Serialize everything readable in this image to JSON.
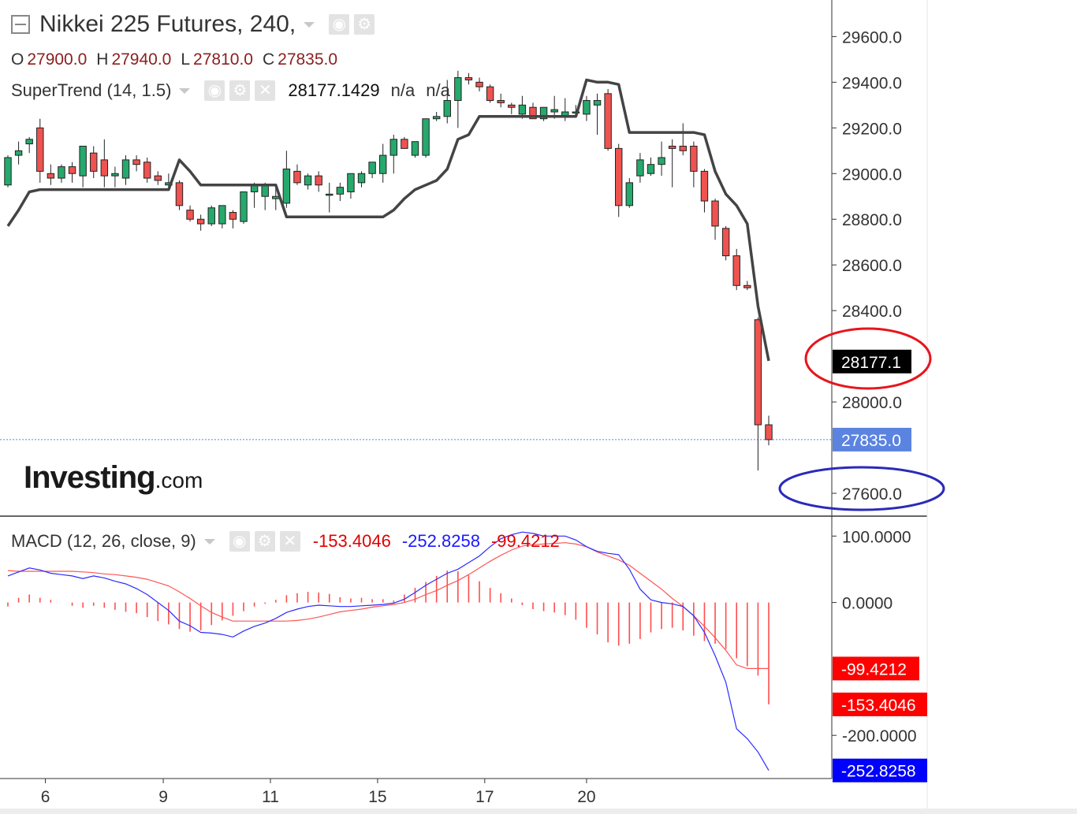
{
  "header": {
    "title": "Nikkei 225 Futures, 240,",
    "ohlc": [
      {
        "label": "O",
        "value": "27900.0"
      },
      {
        "label": "H",
        "value": "27940.0"
      },
      {
        "label": "L",
        "value": "27810.0"
      },
      {
        "label": "C",
        "value": "27835.0"
      }
    ]
  },
  "indicators": {
    "supertrend": {
      "label": "SuperTrend (14, 1.5)",
      "value": "28177.1429",
      "na1": "n/a",
      "na2": "n/a"
    },
    "macd": {
      "label": "MACD (12, 26, close, 9)",
      "hist": "-153.4046",
      "macd": "-252.8258",
      "signal": "-99.4212"
    }
  },
  "logo": {
    "main": "Investing",
    "suffix": ".com"
  },
  "colors": {
    "up": "#26a96c",
    "down": "#ef5350",
    "supertrend": "#444444",
    "macd_line": "#2b2bff",
    "signal_line": "#ff5555",
    "histogram": "#ff4d4d",
    "price_tag": "#5b83e0",
    "annotation_red": "#e8141c",
    "annotation_blue": "#2a2ab8"
  },
  "chart_data": [
    {
      "type": "candlestick",
      "title": "Nikkei 225 Futures, 240,",
      "x_ticks": [
        {
          "label": "6",
          "index": 3.5
        },
        {
          "label": "9",
          "index": 14.5
        },
        {
          "label": "11",
          "index": 24.5
        },
        {
          "label": "15",
          "index": 34.5
        },
        {
          "label": "17",
          "index": 44.5
        },
        {
          "label": "20",
          "index": 54
        }
      ],
      "y_ticks": [
        "29600.0",
        "29400.0",
        "29200.0",
        "29000.0",
        "28800.0",
        "28600.0",
        "28400.0",
        "28000.0",
        "27600.0"
      ],
      "y_tick_values": [
        29600,
        29400,
        29200,
        29000,
        28800,
        28600,
        28400,
        28000,
        27600
      ],
      "ylim": [
        27500,
        29760
      ],
      "candles": [
        [
          28950,
          29080,
          28940,
          29070
        ],
        [
          29080,
          29140,
          29040,
          29100
        ],
        [
          29130,
          29160,
          29090,
          29150
        ],
        [
          29200,
          29240,
          28960,
          29010
        ],
        [
          29000,
          29040,
          28950,
          28980
        ],
        [
          28980,
          29040,
          28960,
          29030
        ],
        [
          29030,
          29050,
          28960,
          29000
        ],
        [
          28990,
          29120,
          28940,
          29120
        ],
        [
          29090,
          29120,
          28980,
          29010
        ],
        [
          29060,
          29150,
          28940,
          28990
        ],
        [
          28990,
          29030,
          28940,
          29000
        ],
        [
          28980,
          29080,
          28950,
          29060
        ],
        [
          29060,
          29080,
          29010,
          29040
        ],
        [
          29050,
          29070,
          28960,
          28980
        ],
        [
          28990,
          29010,
          28950,
          28970
        ],
        [
          28950,
          29000,
          28930,
          28960
        ],
        [
          28960,
          28970,
          28840,
          28860
        ],
        [
          28840,
          28860,
          28790,
          28800
        ],
        [
          28800,
          28820,
          28750,
          28780
        ],
        [
          28780,
          28860,
          28770,
          28850
        ],
        [
          28780,
          28860,
          28760,
          28860
        ],
        [
          28830,
          28840,
          28760,
          28800
        ],
        [
          28790,
          28920,
          28780,
          28920
        ],
        [
          28920,
          28960,
          28850,
          28950
        ],
        [
          28900,
          28960,
          28840,
          28950
        ],
        [
          28890,
          28950,
          28840,
          28900
        ],
        [
          28870,
          29100,
          28850,
          29020
        ],
        [
          29010,
          29040,
          28950,
          28960
        ],
        [
          28950,
          29000,
          28930,
          28990
        ],
        [
          28990,
          29010,
          28920,
          28950
        ],
        [
          28910,
          28960,
          28830,
          28910
        ],
        [
          28910,
          28960,
          28880,
          28940
        ],
        [
          28920,
          29000,
          28890,
          29000
        ],
        [
          28960,
          29010,
          28940,
          29000
        ],
        [
          29000,
          29050,
          28980,
          29050
        ],
        [
          29000,
          29130,
          28960,
          29080
        ],
        [
          29080,
          29170,
          29000,
          29150
        ],
        [
          29150,
          29160,
          29110,
          29110
        ],
        [
          29080,
          29140,
          29070,
          29140
        ],
        [
          29080,
          29240,
          29070,
          29240
        ],
        [
          29240,
          29270,
          29230,
          29250
        ],
        [
          29250,
          29410,
          29220,
          29320
        ],
        [
          29320,
          29450,
          29200,
          29420
        ],
        [
          29420,
          29440,
          29390,
          29410
        ],
        [
          29400,
          29420,
          29360,
          29380
        ],
        [
          29380,
          29390,
          29310,
          29320
        ],
        [
          29320,
          29350,
          29290,
          29310
        ],
        [
          29300,
          29310,
          29260,
          29290
        ],
        [
          29260,
          29340,
          29240,
          29300
        ],
        [
          29290,
          29310,
          29240,
          29240
        ],
        [
          29240,
          29290,
          29230,
          29290
        ],
        [
          29270,
          29340,
          29240,
          29280
        ],
        [
          29250,
          29330,
          29230,
          29270
        ],
        [
          29270,
          29300,
          29250,
          29270
        ],
        [
          29260,
          29340,
          29230,
          29320
        ],
        [
          29300,
          29350,
          29170,
          29320
        ],
        [
          29350,
          29370,
          29100,
          29110
        ],
        [
          29110,
          29130,
          28810,
          28860
        ],
        [
          28860,
          28980,
          28850,
          28960
        ],
        [
          28990,
          29090,
          28960,
          29060
        ],
        [
          29000,
          29070,
          28990,
          29040
        ],
        [
          29040,
          29140,
          28990,
          29070
        ],
        [
          29120,
          29150,
          28940,
          29110
        ],
        [
          29120,
          29220,
          29080,
          29100
        ],
        [
          29120,
          29140,
          28940,
          29010
        ],
        [
          29010,
          29020,
          28830,
          28880
        ],
        [
          28880,
          28890,
          28710,
          28770
        ],
        [
          28760,
          28770,
          28620,
          28640
        ],
        [
          28640,
          28670,
          28490,
          28510
        ],
        [
          28510,
          28530,
          28490,
          28500
        ],
        [
          28360,
          28370,
          27700,
          27900
        ],
        [
          27900,
          27940,
          27810,
          27835
        ]
      ],
      "supertrend": [
        28770,
        28840,
        28920,
        28930,
        28930,
        28930,
        28930,
        28930,
        28930,
        28930,
        28930,
        28930,
        28930,
        28930,
        28930,
        28930,
        29060,
        29010,
        28950,
        28950,
        28950,
        28950,
        28950,
        28950,
        28950,
        28950,
        28810,
        28810,
        28810,
        28810,
        28810,
        28810,
        28810,
        28810,
        28810,
        28810,
        28840,
        28890,
        28930,
        28950,
        28970,
        29020,
        29150,
        29170,
        29250,
        29250,
        29250,
        29250,
        29250,
        29250,
        29250,
        29250,
        29250,
        29250,
        29410,
        29400,
        29400,
        29390,
        29180,
        29180,
        29180,
        29180,
        29180,
        29180,
        29180,
        29170,
        29010,
        28910,
        28860,
        28780,
        28420,
        28180
      ],
      "price_labels": {
        "supertrend_tag": "28177.1",
        "last_price": "27835.0",
        "last_value": 27835
      }
    },
    {
      "type": "macd",
      "title": "MACD (12, 26, close, 9)",
      "y_ticks": [
        "100.0000",
        "0.0000",
        "-200.0000"
      ],
      "y_tick_values": [
        100,
        0,
        -200
      ],
      "ylim": [
        -265,
        130
      ],
      "macd": [
        40,
        46,
        52,
        49,
        44,
        42,
        40,
        36,
        40,
        37,
        32,
        28,
        21,
        12,
        0,
        -12,
        -28,
        -35,
        -45,
        -46,
        -48,
        -52,
        -43,
        -36,
        -31,
        -24,
        -15,
        -10,
        -6,
        -4,
        -5,
        -6,
        -6,
        -5,
        -4,
        -3,
        -1,
        5,
        15,
        26,
        35,
        44,
        50,
        60,
        70,
        84,
        96,
        102,
        106,
        104,
        100,
        100,
        100,
        94,
        84,
        77,
        74,
        72,
        50,
        20,
        4,
        0,
        -2,
        -6,
        -20,
        -45,
        -80,
        -120,
        -190,
        -205,
        -225,
        -252.8258
      ],
      "signal": [
        48,
        47,
        47,
        47,
        47,
        47,
        47,
        46,
        45,
        43,
        42,
        40,
        38,
        35,
        30,
        25,
        16,
        6,
        -5,
        -15,
        -22,
        -28,
        -28,
        -28,
        -28,
        -28,
        -28,
        -27,
        -25,
        -22,
        -18,
        -14,
        -12,
        -10,
        -7,
        -5,
        -3,
        0,
        5,
        12,
        18,
        26,
        33,
        42,
        52,
        62,
        71,
        79,
        85,
        87,
        88,
        89,
        90,
        88,
        84,
        76,
        70,
        64,
        56,
        44,
        32,
        20,
        6,
        -6,
        -20,
        -36,
        -53,
        -72,
        -94,
        -99.4212,
        -99.4212,
        -99.4212
      ],
      "histogram": [
        -6,
        7,
        12,
        7,
        4,
        0,
        -5,
        -8,
        -5,
        -8,
        -11,
        -14,
        -16,
        -22,
        -28,
        -33,
        -40,
        -44,
        -42,
        -34,
        -27,
        -20,
        -13,
        -6,
        -2,
        4,
        11,
        14,
        16,
        15,
        13,
        8,
        6,
        7,
        5,
        5,
        3,
        12,
        22,
        31,
        40,
        48,
        47,
        41,
        32,
        22,
        14,
        6,
        -4,
        -10,
        -13,
        -15,
        -19,
        -26,
        -38,
        -48,
        -60,
        -65,
        -62,
        -55,
        -45,
        -40,
        -38,
        -42,
        -50,
        -58,
        -62,
        -70,
        -84,
        -96,
        -110,
        -153.4046
      ],
      "price_labels": {
        "signal_tag": "-99.4212",
        "hist_tag": "-153.4046",
        "macd_tag": "-252.8258"
      }
    }
  ]
}
